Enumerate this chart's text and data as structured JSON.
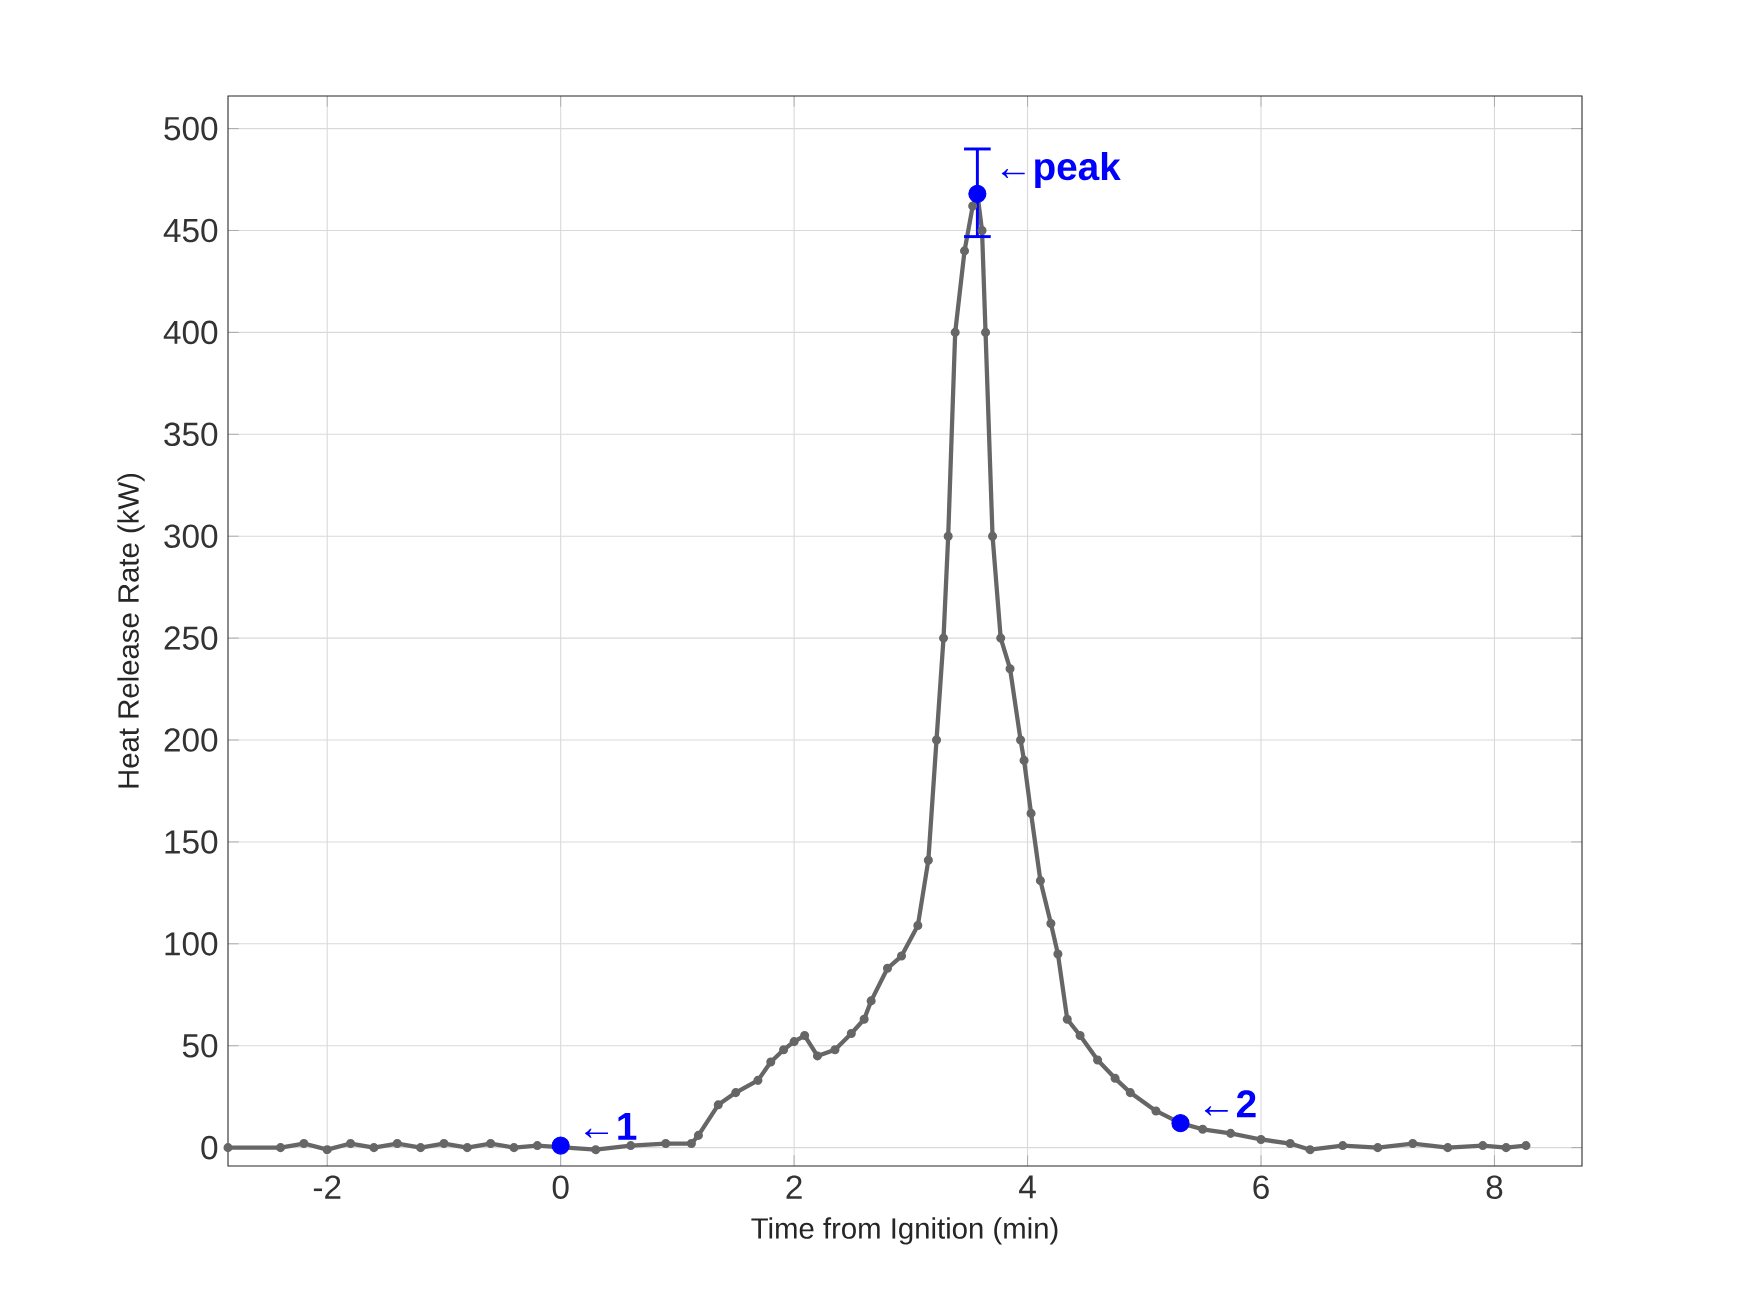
{
  "chart_data": {
    "type": "line",
    "xlabel": "Time from Ignition (min)",
    "ylabel": "Heat Release Rate (kW)",
    "xlim": [
      -2.85,
      8.75
    ],
    "ylim": [
      -9,
      516
    ],
    "xticks": [
      -2,
      0,
      2,
      4,
      6,
      8
    ],
    "yticks": [
      0,
      50,
      100,
      150,
      200,
      250,
      300,
      350,
      400,
      450,
      500
    ],
    "grid": true,
    "marker": "circle",
    "line_style": "solid",
    "series": [
      {
        "color": "#666666",
        "x": [
          -2.85,
          -2.4,
          -2.2,
          -2.0,
          -1.8,
          -1.6,
          -1.4,
          -1.2,
          -1.0,
          -0.8,
          -0.6,
          -0.4,
          -0.2,
          0,
          0.3,
          0.6,
          0.9,
          1.12,
          1.18,
          1.35,
          1.5,
          1.69,
          1.8,
          1.91,
          2.0,
          2.09,
          2.2,
          2.35,
          2.49,
          2.6,
          2.66,
          2.8,
          2.92,
          3.06,
          3.15,
          3.22,
          3.28,
          3.32,
          3.38,
          3.46,
          3.53,
          3.57,
          3.61,
          3.64,
          3.7,
          3.77,
          3.85,
          3.94,
          3.97,
          4.03,
          4.11,
          4.2,
          4.26,
          4.34,
          4.45,
          4.6,
          4.75,
          4.88,
          5.1,
          5.31,
          5.5,
          5.74,
          6.0,
          6.25,
          6.42,
          6.7,
          7.0,
          7.3,
          7.6,
          7.9,
          8.1,
          8.27
        ],
        "values": [
          0,
          0,
          2,
          -1,
          2,
          0,
          2,
          0,
          2,
          0,
          2,
          0,
          1,
          null,
          -1,
          1,
          2,
          2,
          6,
          21,
          27,
          33,
          42,
          48,
          52,
          55,
          45,
          48,
          56,
          63,
          72,
          88,
          94,
          109,
          141,
          200,
          250,
          300,
          400,
          440,
          462,
          468,
          450,
          400,
          300,
          250,
          235,
          200,
          190,
          164,
          131,
          110,
          95,
          63,
          55,
          43,
          34,
          27,
          18,
          12,
          9,
          7,
          4,
          2,
          -1,
          1,
          0,
          2,
          0,
          1,
          0,
          1
        ]
      },
      {
        "type": "scatter",
        "color": "#0000ff",
        "x": [
          0,
          5.31,
          3.57
        ],
        "values": [
          1,
          12,
          468
        ],
        "errors": [
          null,
          null,
          [
            447,
            490
          ]
        ]
      }
    ],
    "annotations": [
      {
        "text": "←1",
        "x": 0,
        "y": 1
      },
      {
        "text": "←2",
        "x": 5.31,
        "y": 12
      },
      {
        "text": "←peak",
        "x": 3.57,
        "y": 468
      }
    ]
  }
}
